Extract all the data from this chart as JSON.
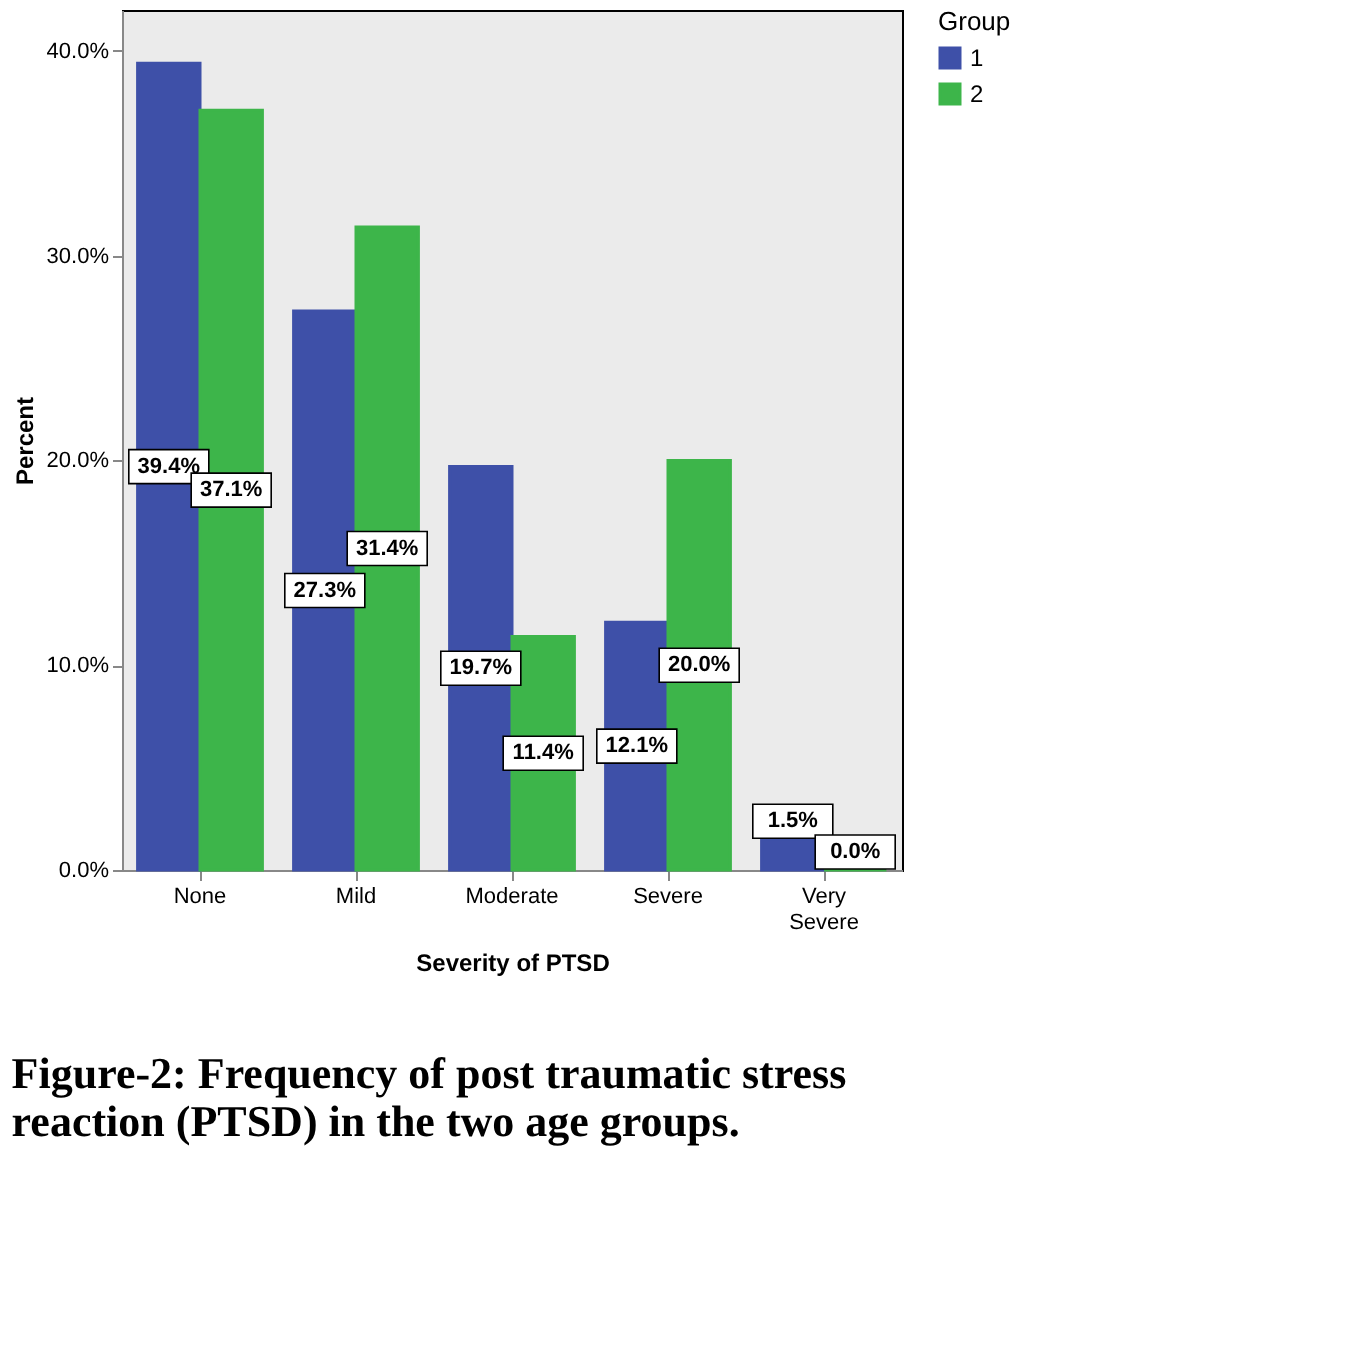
{
  "chart_data": {
    "type": "bar",
    "xlabel": "Severity of PTSD",
    "ylabel": "Percent",
    "legend_title": "Group",
    "legend": "top right",
    "grid": false,
    "categories": [
      "None",
      "Mild",
      "Moderate",
      "Severe",
      "Very Severe"
    ],
    "series": [
      {
        "name": "1",
        "color": "#3e50a8",
        "values": [
          39.4,
          27.3,
          19.7,
          12.1,
          1.5
        ],
        "value_labels": [
          "39.4%",
          "27.3%",
          "19.7%",
          "12.1%",
          "1.5%"
        ]
      },
      {
        "name": "2",
        "color": "#3db54a",
        "values": [
          37.1,
          31.4,
          11.4,
          20.0,
          0.0
        ],
        "value_labels": [
          "37.1%",
          "31.4%",
          "11.4%",
          "20.0%",
          "0.0%"
        ]
      }
    ],
    "ylim": [
      0,
      42
    ],
    "yticks": [
      {
        "value": 0,
        "label": "0.0%"
      },
      {
        "value": 10,
        "label": "10.0%"
      },
      {
        "value": 20,
        "label": "20.0%"
      },
      {
        "value": 30,
        "label": "30.0%"
      },
      {
        "value": 40,
        "label": "40.0%"
      }
    ],
    "annotations": [
      "Figure-2: Frequency of post traumatic stress reaction (PTSD) in the two age groups."
    ]
  }
}
